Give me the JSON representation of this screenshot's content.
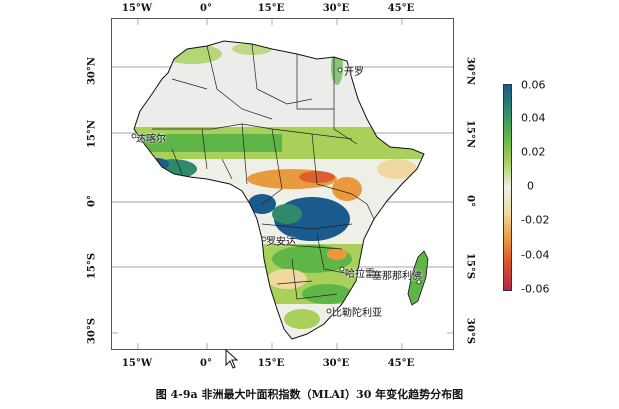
{
  "caption": "图 4-9a 非洲最大叶面积指数（MLAI）30 年变化趋势分布图",
  "lon_ticks": [
    "15°W",
    "0°",
    "15°E",
    "30°E",
    "45°E"
  ],
  "lat_ticks": [
    "30°N",
    "15°N",
    "0°",
    "15°S",
    "30°S"
  ],
  "colorbar": {
    "labels": [
      "0.06",
      "0.04",
      "0.02",
      "0",
      "-0.02",
      "-0.04",
      "-0.06"
    ],
    "colors": [
      "#1a5a8c",
      "#2e8a6b",
      "#5fb548",
      "#a8d05a",
      "#eef0e8",
      "#f0d9a0",
      "#e99a3e",
      "#d94f2a",
      "#b0284a"
    ]
  },
  "cities": {
    "cairo": "开罗",
    "dakar": "达喀尔",
    "luanda": "罗安达",
    "harare": "哈拉雷",
    "antananarivo": "塞那那利佛",
    "pretoria": "比勒陀利亚"
  }
}
